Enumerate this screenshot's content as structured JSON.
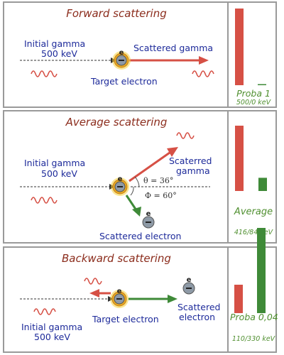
{
  "panels": {
    "forward": {
      "title": "Forward scattering",
      "initial_gamma": "Initial gamma",
      "initial_energy": "500 keV",
      "scattered_gamma": "Scattered gamma",
      "target_electron": "Target electron",
      "prob_label": "Proba 1",
      "energy_split": "500/0 keV",
      "gamma_energy_bar": 500,
      "electron_energy_bar": 0
    },
    "average": {
      "title": "Average scattering",
      "initial_gamma": "Initial gamma",
      "initial_energy": "500 keV",
      "scattered_gamma_line1": "Scaterred",
      "scattered_gamma_line2": "gamma",
      "theta_label": "θ = 36°",
      "phi_label": "Φ = 60°",
      "scattered_electron": "Scattered electron",
      "prob_label": "Average",
      "energy_split": "416/84 keV",
      "gamma_energy_bar": 416,
      "electron_energy_bar": 84
    },
    "backward": {
      "title": "Backward scattering",
      "initial_gamma": "Initial gamma",
      "initial_energy": "500 keV",
      "target_electron": "Target electron",
      "scattered_electron_line1": "Scattered",
      "scattered_electron_line2": "electron",
      "prob_label": "Proba 0,04",
      "energy_split": "110/330 keV",
      "gamma_energy_bar": 110,
      "electron_energy_bar": 330
    }
  },
  "electron_symbol": "e",
  "colors": {
    "gamma": "#d65045",
    "electron": "#3f8a38",
    "title": "#8b2c1c",
    "label": "#1d2a9a",
    "border": "#9a9a9a"
  }
}
